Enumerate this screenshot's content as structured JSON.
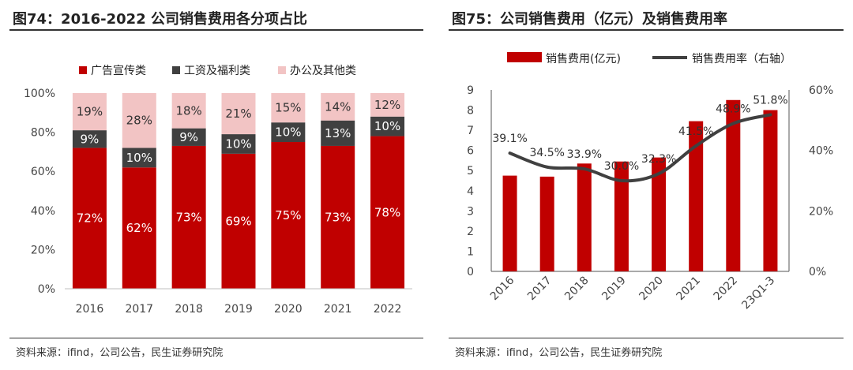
{
  "chart_data": [
    {
      "type": "bar",
      "stacked": true,
      "figure_label": "图74：2016-2022 公司销售费用各分项占比",
      "categories": [
        "2016",
        "2017",
        "2018",
        "2019",
        "2020",
        "2021",
        "2022"
      ],
      "series": [
        {
          "name": "广告宣传类",
          "values": [
            72,
            62,
            73,
            69,
            75,
            73,
            78
          ],
          "labels": [
            "72%",
            "62%",
            "73%",
            "69%",
            "75%",
            "73%",
            "78%"
          ],
          "color": "#c00000",
          "label_color": "#ffffff"
        },
        {
          "name": "工资及福利类",
          "values": [
            9,
            10,
            9,
            10,
            10,
            13,
            10
          ],
          "labels": [
            "9%",
            "10%",
            "9%",
            "10%",
            "10%",
            "13%",
            "10%"
          ],
          "color": "#404040",
          "label_color": "#ffffff"
        },
        {
          "name": "办公及其他类",
          "values": [
            19,
            28,
            18,
            21,
            15,
            14,
            12
          ],
          "labels": [
            "19%",
            "28%",
            "18%",
            "21%",
            "15%",
            "14%",
            "12%"
          ],
          "color": "#f2c4c4",
          "label_color": "#333333"
        }
      ],
      "ylim": [
        0,
        100
      ],
      "yticks": [
        "0%",
        "20%",
        "40%",
        "60%",
        "80%",
        "100%"
      ],
      "legend": "top"
    },
    {
      "type": "bar+line",
      "figure_label": "图75：公司销售费用（亿元）及销售费用率",
      "categories": [
        "2016",
        "2017",
        "2018",
        "2019",
        "2020",
        "2021",
        "2022",
        "23Q1-3"
      ],
      "bars": {
        "name": "销售费用(亿元)",
        "values": [
          4.75,
          4.7,
          5.35,
          5.45,
          5.65,
          7.45,
          8.5,
          8.0
        ],
        "color": "#c00000"
      },
      "line": {
        "name": "销售费用率（右轴）",
        "values": [
          39.1,
          34.5,
          33.9,
          30.0,
          32.3,
          41.5,
          48.9,
          51.8
        ],
        "labels": [
          "39.1%",
          "34.5%",
          "33.9%",
          "30.0%",
          "32.3%",
          "41.5%",
          "48.9%",
          "51.8%"
        ],
        "color": "#404040"
      },
      "y_left": {
        "ylim": [
          0,
          9
        ],
        "ticks": [
          "0",
          "1",
          "2",
          "3",
          "4",
          "5",
          "6",
          "7",
          "8",
          "9"
        ]
      },
      "y_right": {
        "ylim": [
          0,
          60
        ],
        "ticks": [
          "0%",
          "20%",
          "40%",
          "60%"
        ]
      },
      "legend": "top"
    }
  ],
  "sources": {
    "left": "资料来源：ifind，公司公告，民生证券研究院",
    "right": "资料来源：ifind，公司公告，民生证券研究院"
  }
}
